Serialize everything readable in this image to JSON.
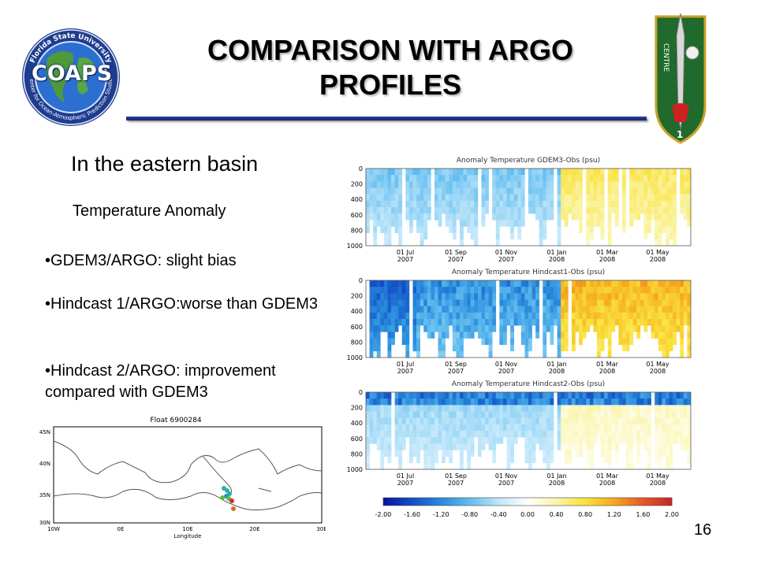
{
  "slide": {
    "title": "COMPARISON WITH ARGO PROFILES",
    "subtitle": "In the eastern basin",
    "section_label": "Temperature Anomaly",
    "bullets": [
      "GDEM3/ARGO: slight bias",
      "Hindcast 1/ARGO:worse than GDEM3",
      "Hindcast 2/ARGO: improvement compared with GDEM3"
    ],
    "page_number": "16"
  },
  "logos": {
    "coaps": {
      "main_text": "COAPS",
      "ring_top": "Florida State University",
      "ring_bottom": "Center for Ocean-Atmospheric Prediction Studies"
    },
    "insignia": {
      "text": "CENTRE",
      "number": "1"
    }
  },
  "colors": {
    "title_rule": "#1f2a80",
    "cold": "#1f5fc0",
    "warm": "#f0d020"
  },
  "chart_data": [
    {
      "type": "heatmap",
      "title": "Anomaly Temperature GDEM3-Obs (psu)",
      "y_ticks": [
        "0",
        "200",
        "400",
        "600",
        "800",
        "1000"
      ],
      "x_ticks": [
        [
          "01 Jul",
          "2007"
        ],
        [
          "01 Sep",
          "2007"
        ],
        [
          "01 Nov",
          "2007"
        ],
        [
          "01 Jan",
          "2008"
        ],
        [
          "01 Mar",
          "2008"
        ],
        [
          "01 May",
          "2008"
        ]
      ],
      "ylim": [
        1000,
        0
      ],
      "pattern": "mostly light blue -0.4 to -0.8 in upper 600 m, slightly positive yellow 0.4 to 0.8 after Feb 2008"
    },
    {
      "type": "heatmap",
      "title": "Anomaly Temperature Hindcast1-Obs (psu)",
      "y_ticks": [
        "0",
        "200",
        "400",
        "600",
        "800",
        "1000"
      ],
      "x_ticks": [
        [
          "01 Jul",
          "2007"
        ],
        [
          "01 Sep",
          "2007"
        ],
        [
          "01 Nov",
          "2007"
        ],
        [
          "01 Jan",
          "2008"
        ],
        [
          "01 Mar",
          "2008"
        ],
        [
          "01 May",
          "2008"
        ]
      ],
      "ylim": [
        1000,
        0
      ],
      "pattern": "strong blue -1.2 to -1.6 in Jul-Jan, strong yellow/orange 0.8 to 1.2 after Feb 2008"
    },
    {
      "type": "heatmap",
      "title": "Anomaly Temperature Hindcast2-Obs (psu)",
      "y_ticks": [
        "0",
        "200",
        "400",
        "600",
        "800",
        "1000"
      ],
      "x_ticks": [
        [
          "01 Jul",
          "2007"
        ],
        [
          "01 Sep",
          "2007"
        ],
        [
          "01 Nov",
          "2007"
        ],
        [
          "01 Jan",
          "2008"
        ],
        [
          "01 Mar",
          "2008"
        ],
        [
          "01 May",
          "2008"
        ]
      ],
      "ylim": [
        1000,
        0
      ],
      "pattern": "weak light blue near surface, mostly near zero below"
    },
    {
      "type": "colorbar",
      "ticks": [
        "-2.00",
        "-1.60",
        "-1.20",
        "-0.80",
        "-0.40",
        "0.00",
        "0.40",
        "0.80",
        "1.20",
        "1.60",
        "2.00"
      ],
      "range": [
        -2.0,
        2.0
      ]
    },
    {
      "type": "map",
      "title": "Float 6900284",
      "x_ticks": [
        "10W",
        "0E",
        "10E",
        "20E",
        "30E"
      ],
      "y_ticks": [
        "45N",
        "40N",
        "35N",
        "30N"
      ],
      "xlabel": "Longitude"
    }
  ]
}
